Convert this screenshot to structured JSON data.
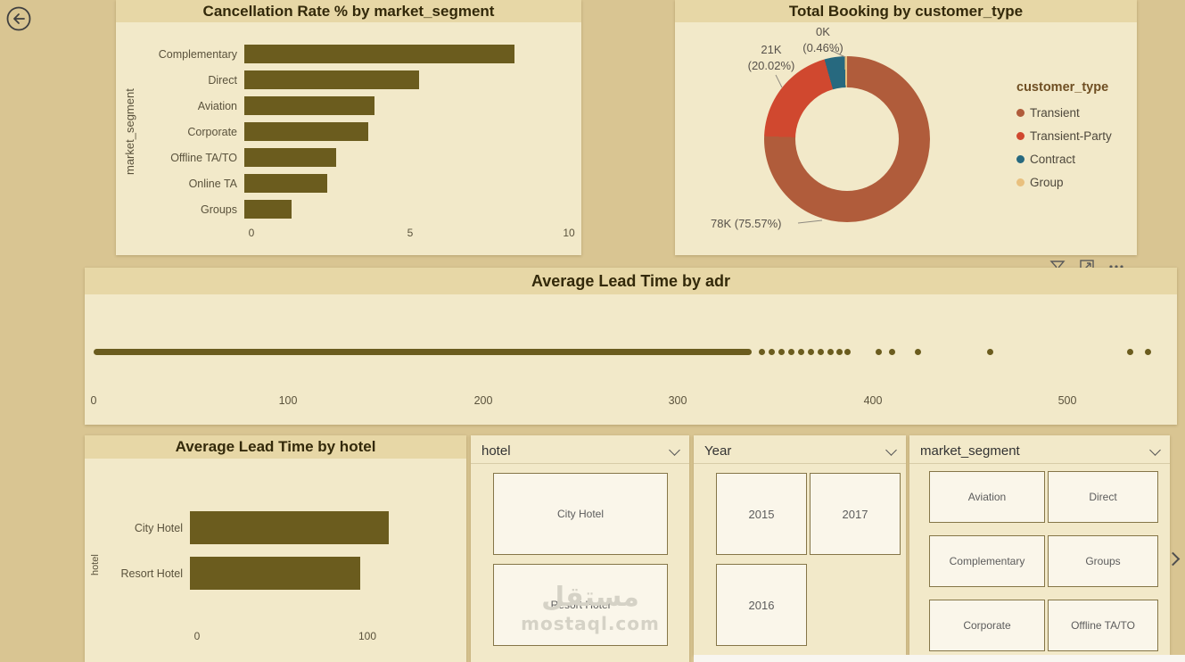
{
  "colors": {
    "page_bg": "#d9c592",
    "card_bg": "#f2e9c9",
    "title_band_bg": "#e7d7a6",
    "title_text": "#33290a",
    "bar": "#6b5c1e",
    "axis_text": "#5a523c"
  },
  "back_button": {
    "icon": "back-arrow-icon"
  },
  "visual_header": {
    "icons": [
      "filter-icon",
      "focus-mode-icon",
      "more-options-icon"
    ]
  },
  "watermark": {
    "lines": [
      "مستقل",
      "mostaql.com"
    ]
  },
  "slicers": {
    "hotel": {
      "label": "hotel",
      "options": [
        "City Hotel",
        "Resort Hotel"
      ]
    },
    "year": {
      "label": "Year",
      "options": [
        "2015",
        "2017",
        "2016"
      ]
    },
    "market_segment": {
      "label": "market_segment",
      "options": [
        "Aviation",
        "Direct",
        "Complementary",
        "Groups",
        "Corporate",
        "Offline TA/TO"
      ]
    }
  },
  "chart_data": [
    {
      "type": "bar",
      "orientation": "horizontal",
      "title": "Cancellation Rate % by market_segment",
      "ylabel": "market_segment",
      "categories": [
        "Complementary",
        "Direct",
        "Aviation",
        "Corporate",
        "Offline TA/TO",
        "Online TA",
        "Groups"
      ],
      "values": [
        8.5,
        5.5,
        4.1,
        3.9,
        2.9,
        2.6,
        1.5
      ],
      "x_ticks": [
        0,
        5,
        10
      ],
      "xlim": [
        0,
        10
      ],
      "grid": false
    },
    {
      "type": "pie",
      "subtype": "donut",
      "title": "Total Booking by customer_type",
      "legend_title": "customer_type",
      "legend_position": "right",
      "series": [
        {
          "name": "Transient",
          "label": "78K (75.57%)",
          "pct": 75.57,
          "color": "#b05c3b"
        },
        {
          "name": "Transient-Party",
          "label": "21K (20.02%)",
          "pct": 20.02,
          "color": "#d0482f"
        },
        {
          "name": "Contract",
          "label": "",
          "pct": 3.95,
          "color": "#27697f"
        },
        {
          "name": "Group",
          "label": "0K (0.46%)",
          "pct": 0.46,
          "color": "#e9c07e"
        }
      ],
      "callouts": [
        {
          "lines": [
            "0K",
            "(0.46%)"
          ]
        },
        {
          "lines": [
            "21K",
            "(20.02%)"
          ]
        },
        {
          "lines": [
            "78K (75.57%)"
          ]
        }
      ]
    },
    {
      "type": "scatter",
      "title": "Average Lead Time by adr",
      "x_ticks": [
        0,
        100,
        200,
        300,
        400,
        500
      ],
      "xlim": [
        0,
        555
      ],
      "dense_range": [
        0,
        338
      ],
      "points": [
        343,
        348,
        353,
        358,
        363,
        368,
        373,
        378,
        383,
        387,
        403,
        410,
        423,
        460,
        532,
        541
      ],
      "grid": false
    },
    {
      "type": "bar",
      "orientation": "horizontal",
      "title": "Average Lead Time by hotel",
      "ylabel": "hotel",
      "categories": [
        "City Hotel",
        "Resort Hotel"
      ],
      "values": [
        117,
        100
      ],
      "x_ticks": [
        0,
        100
      ],
      "xlim": [
        0,
        150
      ],
      "grid": false
    }
  ]
}
